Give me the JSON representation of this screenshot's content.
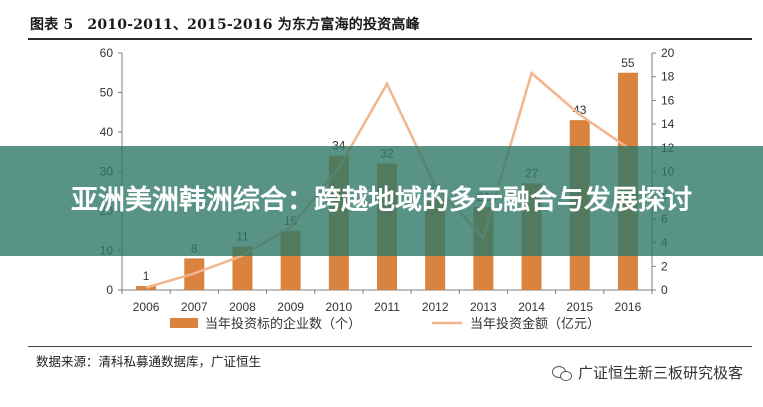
{
  "figure": {
    "label": "图表 5",
    "title": "2010-2011、2015-2016 为东方富海的投资高峰",
    "source": "数据来源：清科私募通数据库，广证恒生"
  },
  "watermark": {
    "text": "广证恒生新三板研究极客",
    "icon": "wechat-icon"
  },
  "banner": {
    "text": "亚洲美洲韩洲综合：跨越地域的多元融合与发展探讨"
  },
  "colors": {
    "bar": "#D9833E",
    "line": "#F4B58E",
    "banner": "#2F7868"
  },
  "chart_data": {
    "type": "bar",
    "categories": [
      "2006",
      "2007",
      "2008",
      "2009",
      "2010",
      "2011",
      "2012",
      "2013",
      "2014",
      "2015",
      "2016"
    ],
    "series": [
      {
        "name": "当年投资标的企业数（个）",
        "type": "bar",
        "axis": "left",
        "values": [
          1,
          8,
          11,
          15,
          34,
          32,
          23,
          21,
          27,
          43,
          55
        ],
        "data_labels": true
      },
      {
        "name": "当年投资金额（亿元）",
        "type": "line",
        "axis": "right",
        "values": [
          0.2,
          1.4,
          2.9,
          5.3,
          10.3,
          17.4,
          8.8,
          4.4,
          18.3,
          14.8,
          12.0
        ],
        "data_labels": false
      }
    ],
    "y_left": {
      "min": 0,
      "max": 60,
      "ticks": [
        0,
        10,
        20,
        30,
        40,
        50,
        60
      ]
    },
    "y_right": {
      "min": 0,
      "max": 20,
      "ticks": [
        0,
        2,
        4,
        6,
        8,
        10,
        12,
        14,
        16,
        18,
        20
      ]
    },
    "grid": false,
    "legend_position": "bottom"
  }
}
